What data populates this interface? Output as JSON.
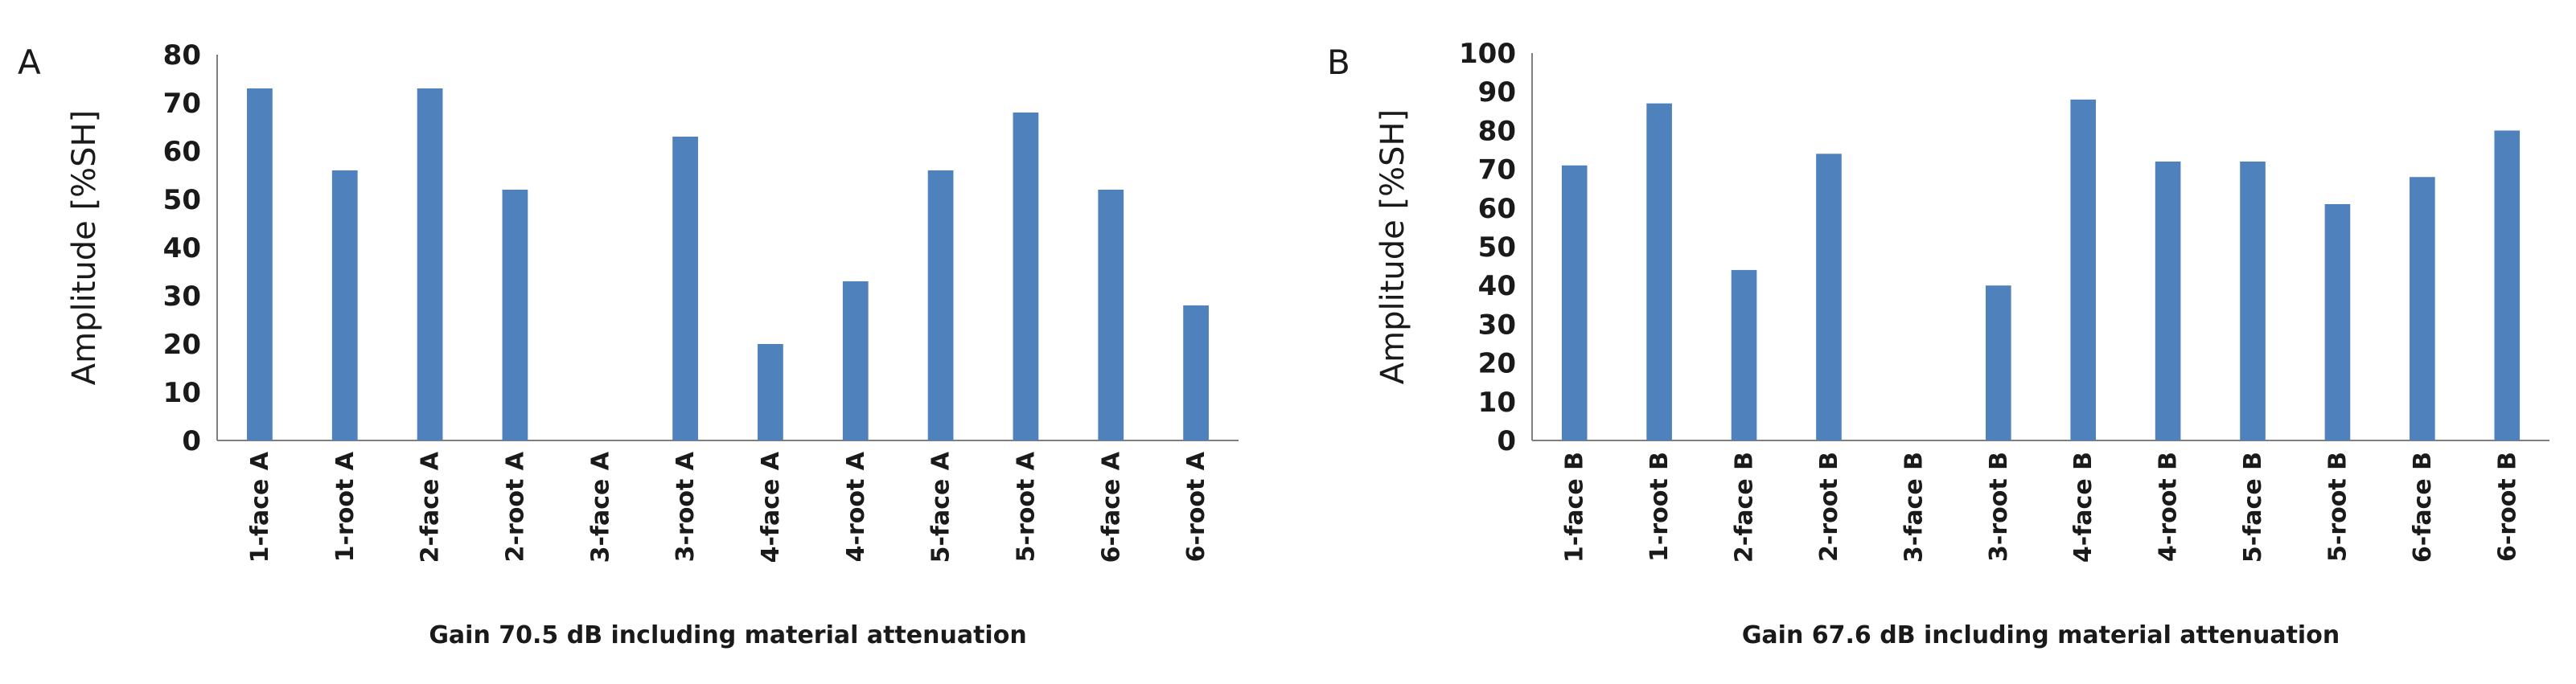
{
  "colors": {
    "bar": "#4f81bd",
    "axis": "#7f7f7f",
    "text": "#1a1a1a"
  },
  "chart_data": [
    {
      "type": "bar",
      "panel_label": "A",
      "categories": [
        "1-face A",
        "1-root A",
        "2-face A",
        "2-root A",
        "3-face A",
        "3-root A",
        "4-face A",
        "4-root A",
        "5-face A",
        "5-root A",
        "6-face A",
        "6-root A"
      ],
      "values": [
        73,
        56,
        73,
        52,
        0,
        63,
        20,
        33,
        56,
        68,
        52,
        28
      ],
      "title": "",
      "xlabel": "Gain 70.5 dB including material attenuation",
      "ylabel": "Amplitude [%SH]",
      "ylim": [
        0,
        80
      ],
      "yticks": [
        0,
        10,
        20,
        30,
        40,
        50,
        60,
        70,
        80
      ],
      "grid": false,
      "legend": "none"
    },
    {
      "type": "bar",
      "panel_label": "B",
      "categories": [
        "1-face B",
        "1-root B",
        "2-face B",
        "2-root B",
        "3-face B",
        "3-root B",
        "4-face B",
        "4-root B",
        "5-face B",
        "5-root B",
        "6-face B",
        "6-root B"
      ],
      "values": [
        71,
        87,
        44,
        74,
        0,
        40,
        88,
        72,
        72,
        61,
        68,
        80
      ],
      "title": "",
      "xlabel": "Gain 67.6 dB including material attenuation",
      "ylabel": "Amplitude [%SH]",
      "ylim": [
        0,
        100
      ],
      "yticks": [
        0,
        10,
        20,
        30,
        40,
        50,
        60,
        70,
        80,
        90,
        100
      ],
      "grid": false,
      "legend": "none"
    }
  ]
}
